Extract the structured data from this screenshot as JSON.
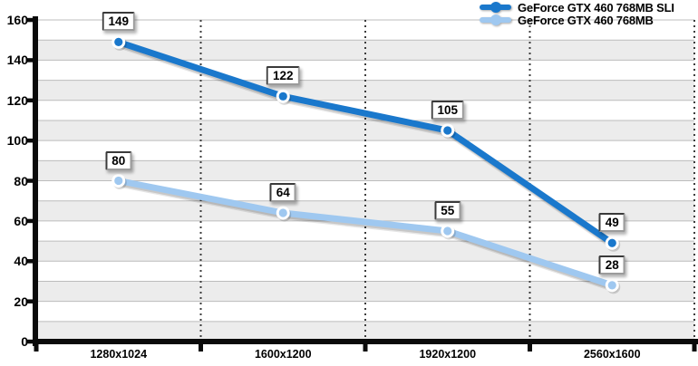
{
  "chart_data": {
    "type": "line",
    "title": "",
    "categories": [
      "1280x1024",
      "1600x1200",
      "1920x1200",
      "2560x1600"
    ],
    "series": [
      {
        "name": "GeForce GTX 460 768MB SLI",
        "values": [
          149,
          122,
          105,
          49
        ],
        "color": "#1a78cc"
      },
      {
        "name": "GeForce GTX 460 768MB",
        "values": [
          80,
          64,
          55,
          28
        ],
        "color": "#9fc8f0"
      }
    ],
    "ylim": [
      0,
      160
    ],
    "yticks": [
      0,
      20,
      40,
      60,
      80,
      100,
      120,
      140,
      160
    ],
    "minor_y_step": 10,
    "data_labels_shown": true,
    "legend_position": "top-right",
    "colors": {
      "band": "#ececec",
      "gridline": "#bcbcbc",
      "separator": "#3d3d3d",
      "axis": "#0a0a0a",
      "marker_ring": "#ffffff",
      "label_box_bg": "#ffffff"
    }
  }
}
